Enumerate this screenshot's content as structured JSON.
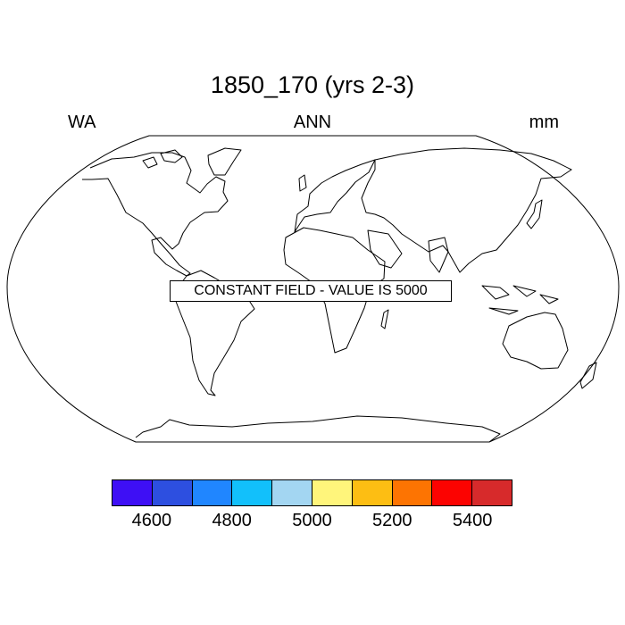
{
  "title": "1850_170 (yrs 2-3)",
  "subtitle_left": "WA",
  "subtitle_center": "ANN",
  "subtitle_right": "mm",
  "notice": "CONSTANT FIELD - VALUE IS 5000",
  "map": {
    "projection": "robinson",
    "field_value": 5000,
    "coastline_color": "#000000",
    "background": "#ffffff"
  },
  "colorbar": {
    "colors": [
      "#3e0ff5",
      "#2d4fe0",
      "#2086ff",
      "#12c0fb",
      "#a3d6f2",
      "#fff57b",
      "#fdbe13",
      "#fd7402",
      "#fc0301",
      "#d72a2b"
    ],
    "levels": [
      4600,
      4700,
      4800,
      4900,
      5000,
      5100,
      5200,
      5300,
      5400
    ],
    "tick_labels": [
      "4600",
      "4800",
      "5000",
      "5200",
      "5400"
    ]
  }
}
